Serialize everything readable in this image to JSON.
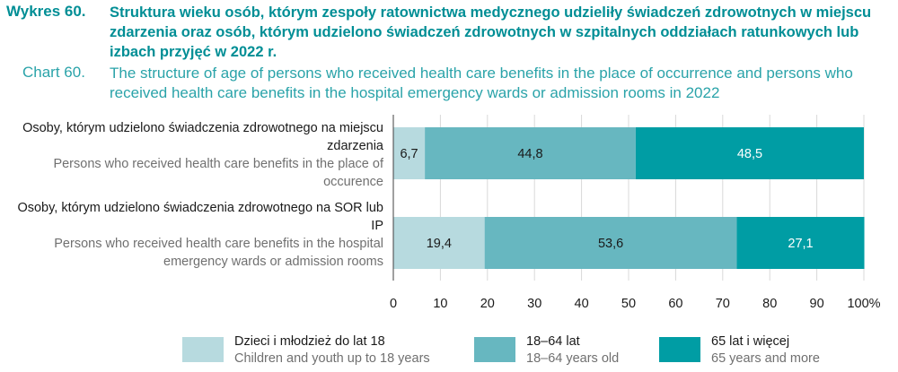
{
  "header": {
    "label_pl": "Wykres 60.",
    "label_en": "Chart 60.",
    "title_pl": "Struktura wieku osób, którym zespoły ratownictwa medycznego udzieliły świadczeń zdrowotnych w miejscu zdarzenia oraz osób, którym udzielono świadczeń zdrowotnych w szpitalnych oddziałach ratunkowych lub izbach przyjęć w 2022 r.",
    "title_en": "The structure of age of persons who received health care benefits in the place of occurrence and persons who received health care benefits in the hospital emergency wards or admission rooms in 2022"
  },
  "chart_data": {
    "type": "bar",
    "orientation": "horizontal",
    "stacked": true,
    "categories": [
      {
        "pl": "Osoby, którym udzielono świadczenia zdrowotnego na miejscu zdarzenia",
        "en": "Persons who received health care benefits in the place of occurence"
      },
      {
        "pl": "Osoby, którym udzielono świadczenia zdrowotnego na SOR lub IP",
        "en": "Persons who received health care benefits in the hospital emergency wards or admission rooms"
      }
    ],
    "series": [
      {
        "name_pl": "Dzieci i młodzież do lat 18",
        "name_en": "Children and youth up to 18 years",
        "values": [
          6.7,
          19.4
        ],
        "labels": [
          "6,7",
          "19,4"
        ],
        "color": "#b7dadf",
        "label_color": "#1a1a1a"
      },
      {
        "name_pl": "18–64 lat",
        "name_en": "18–64 years old",
        "values": [
          44.8,
          53.6
        ],
        "labels": [
          "44,8",
          "53,6"
        ],
        "color": "#67b7c0",
        "label_color": "#1a1a1a"
      },
      {
        "name_pl": "65 lat i więcej",
        "name_en": "65 years and more",
        "values": [
          48.5,
          27.1
        ],
        "labels": [
          "48,5",
          "27,1"
        ],
        "color": "#009da4",
        "label_color": "#ffffff"
      }
    ],
    "xlim": [
      0,
      100
    ],
    "ticks": [
      0,
      10,
      20,
      30,
      40,
      50,
      60,
      70,
      80,
      90,
      100
    ],
    "tick_labels": [
      "0",
      "10",
      "20",
      "30",
      "40",
      "50",
      "60",
      "70",
      "80",
      "90",
      "100%"
    ],
    "grid": true,
    "legend_position": "bottom"
  }
}
